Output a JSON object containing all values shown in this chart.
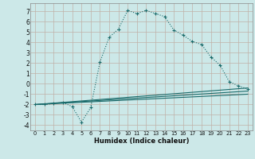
{
  "xlabel": "Humidex (Indice chaleur)",
  "bg_color": "#cce8e8",
  "grid_color": "#c0b0a8",
  "line_color": "#1a6b6b",
  "xlim": [
    -0.5,
    23.5
  ],
  "ylim": [
    -4.5,
    7.8
  ],
  "xticks": [
    0,
    1,
    2,
    3,
    4,
    5,
    6,
    7,
    8,
    9,
    10,
    11,
    12,
    13,
    14,
    15,
    16,
    17,
    18,
    19,
    20,
    21,
    22,
    23
  ],
  "yticks": [
    -4,
    -3,
    -2,
    -1,
    0,
    1,
    2,
    3,
    4,
    5,
    6,
    7
  ],
  "line1_x": [
    0,
    1,
    2,
    3,
    4,
    5,
    6,
    7,
    8,
    9,
    10,
    11,
    12,
    13,
    14,
    15,
    16,
    17,
    18,
    19,
    20,
    21,
    22,
    23
  ],
  "line1_y": [
    -2.0,
    -2.0,
    -1.9,
    -1.8,
    -2.2,
    -3.7,
    -2.3,
    2.1,
    4.5,
    5.3,
    7.1,
    6.8,
    7.1,
    6.8,
    6.5,
    5.2,
    4.7,
    4.1,
    3.8,
    2.6,
    1.8,
    0.2,
    -0.2,
    -0.5
  ],
  "line2_x": [
    0,
    23
  ],
  "line2_y": [
    -2.0,
    -0.4
  ],
  "line3_x": [
    0,
    23
  ],
  "line3_y": [
    -2.0,
    -0.7
  ],
  "line4_x": [
    0,
    23
  ],
  "line4_y": [
    -2.0,
    -1.0
  ],
  "xlabel_fontsize": 6.0,
  "tick_fontsize_x": 4.8,
  "tick_fontsize_y": 5.5
}
